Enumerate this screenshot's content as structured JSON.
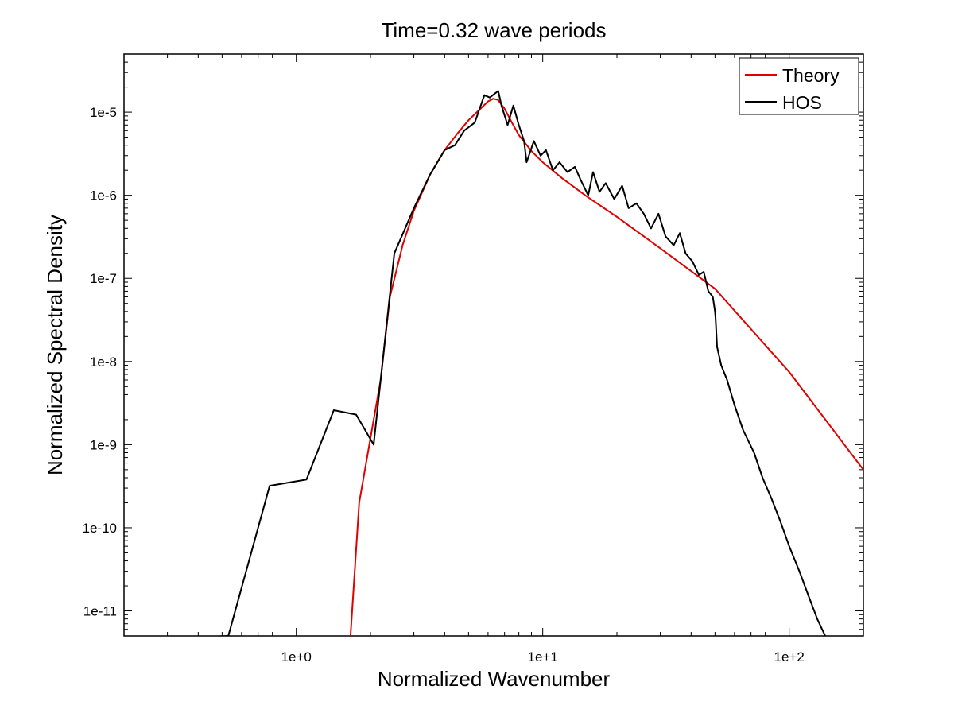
{
  "chart_data": {
    "type": "line",
    "title": "Time=0.32 wave periods",
    "xlabel": "Normalized Wavenumber",
    "ylabel": "Normalized Spectral Density",
    "xscale": "log",
    "yscale": "log",
    "xlim": [
      0.2,
      200
    ],
    "ylim": [
      5e-12,
      5e-05
    ],
    "grid": false,
    "legend_position": "top-right",
    "x_ticks": [
      {
        "value": 1,
        "label": "1e+0"
      },
      {
        "value": 10,
        "label": "1e+1"
      },
      {
        "value": 100,
        "label": "1e+2"
      }
    ],
    "y_ticks": [
      {
        "value": 1e-11,
        "label": "1e-11"
      },
      {
        "value": 1e-10,
        "label": "1e-10"
      },
      {
        "value": 1e-09,
        "label": "1e-9"
      },
      {
        "value": 1e-08,
        "label": "1e-8"
      },
      {
        "value": 1e-07,
        "label": "1e-7"
      },
      {
        "value": 1e-06,
        "label": "1e-6"
      },
      {
        "value": 1e-05,
        "label": "1e-5"
      }
    ],
    "series": [
      {
        "name": "Theory",
        "color": "#e00000",
        "x": [
          1.66,
          1.8,
          2.0,
          2.2,
          2.4,
          2.7,
          3.0,
          3.5,
          4.0,
          4.5,
          5.0,
          5.5,
          6.0,
          6.3,
          6.6,
          7.0,
          7.5,
          8.0,
          9.0,
          10,
          12,
          15,
          20,
          30,
          50,
          100,
          200
        ],
        "values": [
          5e-12,
          2e-10,
          1.2e-09,
          6e-09,
          6e-08,
          2.5e-07,
          6.5e-07,
          1.8e-06,
          3.5e-06,
          5.5e-06,
          8e-06,
          1.05e-05,
          1.35e-05,
          1.45e-05,
          1.4e-05,
          1.1e-05,
          7.5e-06,
          5.3e-06,
          3.4e-06,
          2.5e-06,
          1.6e-06,
          9.8e-07,
          5.5e-07,
          2.3e-07,
          7.5e-08,
          7.5e-09,
          5e-10
        ]
      },
      {
        "name": "HOS",
        "color": "#000000",
        "x": [
          0.2,
          0.21,
          0.53,
          0.78,
          1.1,
          1.42,
          1.75,
          2.06,
          2.5,
          3.0,
          3.5,
          4.0,
          4.4,
          4.8,
          5.3,
          5.8,
          6.1,
          6.6,
          6.8,
          7.2,
          7.6,
          8.0,
          8.4,
          8.6,
          9.2,
          9.8,
          10.3,
          11,
          11.7,
          12.6,
          13.5,
          14.3,
          15.3,
          16,
          17,
          18,
          19.5,
          21,
          22.3,
          24,
          25.7,
          27.5,
          29.5,
          31.5,
          34,
          36,
          38,
          40.5,
          43,
          45,
          47,
          49,
          50,
          50.3,
          51,
          53,
          56,
          60,
          65,
          72,
          78,
          85,
          92,
          100,
          110,
          120,
          130,
          140
        ],
        "values": [
          5e-12,
          4.5e-12,
          5e-12,
          3.2e-10,
          3.8e-10,
          2.6e-09,
          2.3e-09,
          1e-09,
          2e-07,
          7e-07,
          1.8e-06,
          3.5e-06,
          4e-06,
          6e-06,
          7.5e-06,
          1.6e-05,
          1.5e-05,
          1.8e-05,
          1.2e-05,
          7e-06,
          1.2e-05,
          7e-06,
          4.5e-06,
          2.5e-06,
          4.5e-06,
          3e-06,
          3.5e-06,
          2e-06,
          2.5e-06,
          1.9e-06,
          2.2e-06,
          1.5e-06,
          1e-06,
          1.9e-06,
          1.1e-06,
          1.4e-06,
          9e-07,
          1.3e-06,
          7e-07,
          8e-07,
          6e-07,
          4e-07,
          6e-07,
          3.2e-07,
          2.5e-07,
          3.5e-07,
          2e-07,
          1.6e-07,
          1.1e-07,
          1.2e-07,
          7e-08,
          6e-08,
          4e-08,
          3.2e-08,
          1.5e-08,
          9e-09,
          6e-09,
          3e-09,
          1.5e-09,
          8e-10,
          4e-10,
          2.2e-10,
          1.2e-10,
          6e-11,
          3e-11,
          1.5e-11,
          8e-12,
          5e-12
        ]
      }
    ]
  }
}
